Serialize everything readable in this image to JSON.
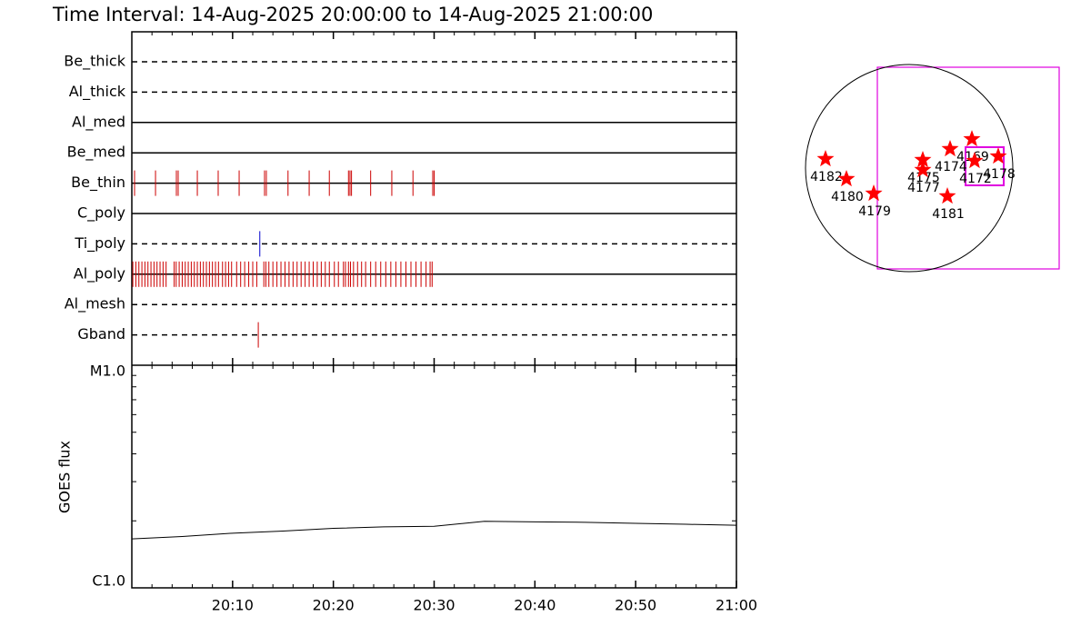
{
  "chart_data": [
    {
      "type": "timeline",
      "title": "Time Interval: 14-Aug-2025 20:00:00 to 14-Aug-2025 21:00:00",
      "rows": [
        {
          "name": "Be_thick",
          "line": "dashed",
          "color": "#cc0000",
          "events": []
        },
        {
          "name": "Al_thick",
          "line": "dashed",
          "color": "#cc0000",
          "events": []
        },
        {
          "name": "Al_med",
          "line": "solid",
          "color": "#cc0000",
          "events": []
        },
        {
          "name": "Be_med",
          "line": "solid",
          "color": "#cc0000",
          "events": []
        },
        {
          "name": "Be_thin",
          "line": "solid",
          "color": "#cc0000",
          "events": [
            0.27,
            2.35,
            4.42,
            4.6,
            6.5,
            8.57,
            10.65,
            13.17,
            13.35,
            15.5,
            17.6,
            19.6,
            21.5,
            21.65,
            21.8,
            23.7,
            25.8,
            27.9,
            29.86,
            30.0
          ]
        },
        {
          "name": "C_poly",
          "line": "solid",
          "color": "#cc0000",
          "events": []
        },
        {
          "name": "Ti_poly",
          "line": "dashed",
          "color": "#0000cc",
          "events": [
            12.7
          ]
        },
        {
          "name": "Al_poly",
          "line": "solid",
          "color": "#cc0000",
          "events": [
            0.1,
            0.4,
            0.7,
            1.0,
            1.3,
            1.6,
            1.9,
            2.2,
            2.5,
            2.8,
            3.1,
            3.4,
            4.2,
            4.4,
            4.7,
            5.0,
            5.3,
            5.6,
            5.9,
            6.2,
            6.5,
            6.8,
            7.1,
            7.4,
            7.7,
            8.0,
            8.3,
            8.6,
            9.0,
            9.3,
            9.6,
            9.9,
            10.4,
            10.8,
            11.2,
            11.6,
            12.0,
            12.4,
            13.1,
            13.3,
            13.6,
            14.0,
            14.4,
            14.8,
            15.2,
            15.6,
            16.0,
            16.4,
            16.8,
            17.2,
            17.6,
            18.0,
            18.4,
            18.8,
            19.2,
            19.6,
            20.1,
            20.5,
            21.0,
            21.2,
            21.5,
            21.7,
            22.0,
            22.4,
            22.8,
            23.2,
            23.7,
            24.2,
            24.7,
            25.2,
            25.7,
            26.2,
            26.7,
            27.2,
            27.7,
            28.2,
            28.7,
            29.2,
            29.6,
            29.8
          ]
        },
        {
          "name": "Al_mesh",
          "line": "dashed",
          "color": "#cc0000",
          "events": []
        },
        {
          "name": "Gband",
          "line": "dashed",
          "color": "#cc0000",
          "events": [
            12.55
          ]
        }
      ]
    },
    {
      "type": "line",
      "y_label": "GOES flux",
      "log_scale": true,
      "xlim": [
        0,
        60
      ],
      "xticks": [
        {
          "value": 10,
          "label": "20:10"
        },
        {
          "value": 20,
          "label": "20:20"
        },
        {
          "value": 30,
          "label": "20:30"
        },
        {
          "value": 40,
          "label": "20:40"
        },
        {
          "value": 50,
          "label": "20:50"
        },
        {
          "value": 60,
          "label": "21:00"
        }
      ],
      "minor_xticks": [
        2,
        4,
        6,
        8,
        12,
        14,
        16,
        18,
        22,
        24,
        26,
        28,
        32,
        34,
        36,
        38,
        42,
        44,
        46,
        48,
        52,
        54,
        56,
        58
      ],
      "ylim": [
        1e-06,
        1e-05
      ],
      "yticks": [
        {
          "value": 1e-06,
          "label": "C1.0"
        },
        {
          "value": 1e-05,
          "label": "M1.0"
        }
      ],
      "minor_yticks": [
        2e-06,
        3e-06,
        4e-06,
        5e-06,
        6e-06,
        7e-06,
        8e-06,
        9e-06
      ],
      "x": [
        0,
        5,
        10,
        15,
        20,
        25,
        30,
        35,
        40,
        45,
        50,
        55,
        60
      ],
      "values": [
        1.66e-06,
        1.7e-06,
        1.76e-06,
        1.8e-06,
        1.85e-06,
        1.88e-06,
        1.89e-06,
        1.99e-06,
        1.98e-06,
        1.97e-06,
        1.95e-06,
        1.93e-06,
        1.91e-06
      ],
      "color": "#000000"
    },
    {
      "type": "map",
      "sun_radius": 960,
      "color": "#ff0000",
      "regions": [
        {
          "label": "4182",
          "x": -775,
          "y": 84
        },
        {
          "label": "4180",
          "x": -581,
          "y": -101
        },
        {
          "label": "4179",
          "x": -328,
          "y": -236
        },
        {
          "label": "4175",
          "x": 126,
          "y": 76
        },
        {
          "label": "4177",
          "x": 126,
          "y": -17
        },
        {
          "label": "4174",
          "x": 379,
          "y": 177
        },
        {
          "label": "4169",
          "x": 581,
          "y": 269
        },
        {
          "label": "4172",
          "x": 606,
          "y": 67
        },
        {
          "label": "4178",
          "x": 825,
          "y": 109
        },
        {
          "label": "4181",
          "x": 354,
          "y": -261
        }
      ]
    }
  ]
}
